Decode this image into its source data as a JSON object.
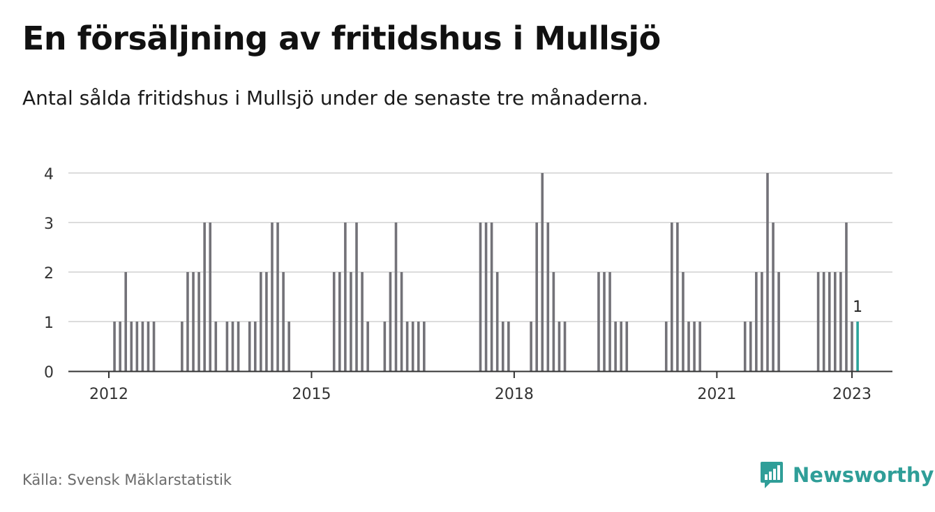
{
  "header": {
    "title": "En försäljning av fritidshus i Mullsjö",
    "subtitle": "Antal sålda fritidshus i Mullsjö under de senaste tre månaderna."
  },
  "footer": {
    "source": "Källa: Svensk Mäklarstatistik",
    "brand": "Newsworthy",
    "brand_icon": "newsworthy-logo-icon"
  },
  "colors": {
    "bar": "#737278",
    "highlight": "#2aa39a",
    "grid": "#dcdcdc",
    "axis": "#333333",
    "brand": "#2f9e98"
  },
  "chart_data": {
    "type": "bar",
    "x_start": "2012-01",
    "x_end": "2023-01",
    "interval": "month",
    "ylim": [
      0,
      4
    ],
    "y_ticks": [
      0,
      1,
      2,
      3,
      4
    ],
    "x_ticks": [
      "2012",
      "2015",
      "2018",
      "2021",
      "2023"
    ],
    "grid": true,
    "highlight_label": "1",
    "values": [
      0,
      1,
      1,
      2,
      1,
      1,
      1,
      1,
      1,
      0,
      0,
      0,
      0,
      1,
      2,
      2,
      2,
      3,
      3,
      1,
      0,
      1,
      1,
      1,
      0,
      1,
      1,
      2,
      2,
      3,
      3,
      2,
      1,
      0,
      0,
      0,
      0,
      0,
      0,
      0,
      2,
      2,
      3,
      2,
      3,
      2,
      1,
      0,
      0,
      1,
      2,
      3,
      2,
      1,
      1,
      1,
      1,
      0,
      0,
      0,
      0,
      0,
      0,
      0,
      0,
      0,
      3,
      3,
      3,
      2,
      1,
      1,
      0,
      0,
      0,
      1,
      3,
      4,
      3,
      2,
      1,
      1,
      0,
      0,
      0,
      0,
      0,
      2,
      2,
      2,
      1,
      1,
      1,
      0,
      0,
      0,
      0,
      0,
      0,
      1,
      3,
      3,
      2,
      1,
      1,
      1,
      0,
      0,
      0,
      0,
      0,
      0,
      0,
      1,
      1,
      2,
      2,
      4,
      3,
      2,
      0,
      0,
      0,
      0,
      0,
      0,
      2,
      2,
      2,
      2,
      2,
      3,
      1,
      1
    ]
  }
}
